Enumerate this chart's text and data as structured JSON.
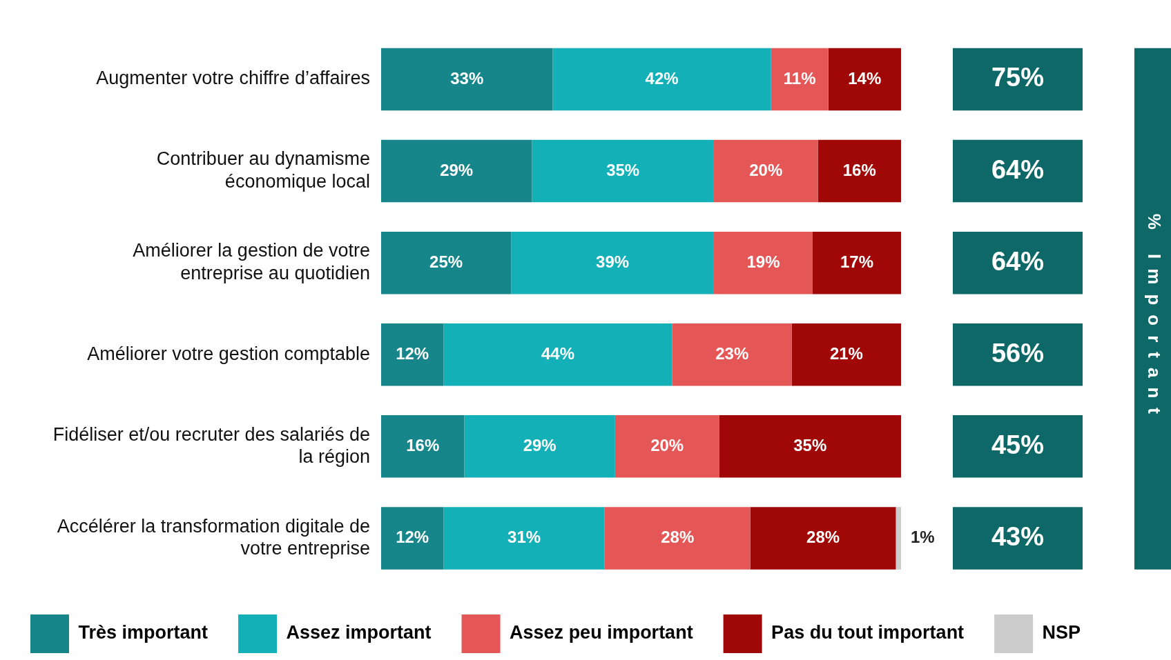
{
  "chart_data": {
    "type": "bar",
    "orientation": "horizontal",
    "stacked": true,
    "legend": "bottom",
    "grid": false,
    "tick_labels": "y",
    "categories": [
      "Augmenter votre chiffre d’affaires",
      "Contribuer au dynamisme économique local",
      "Améliorer la gestion de votre entreprise au quotidien",
      "Améliorer votre gestion comptable",
      "Fidéliser et/ou recruter des salariés de la région",
      "Accélérer la transformation digitale de votre entreprise"
    ],
    "series": [
      {
        "name": "Très important",
        "color": "#17868a",
        "values": [
          33,
          29,
          25,
          12,
          16,
          12
        ],
        "value_labels": [
          "33%",
          "29%",
          "25%",
          "12%",
          "16%",
          "12%"
        ]
      },
      {
        "name": "Assez important",
        "color": "#14b0b8",
        "values": [
          42,
          35,
          39,
          44,
          29,
          31
        ],
        "value_labels": [
          "42%",
          "35%",
          "39%",
          "44%",
          "29%",
          "31%"
        ]
      },
      {
        "name": "Assez peu important",
        "color": "#e55757",
        "values": [
          11,
          20,
          19,
          23,
          20,
          28
        ],
        "value_labels": [
          "11%",
          "20%",
          "19%",
          "23%",
          "20%",
          "28%"
        ]
      },
      {
        "name": "Pas du tout important",
        "color": "#a00808",
        "values": [
          14,
          16,
          17,
          21,
          35,
          28
        ],
        "value_labels": [
          "14%",
          "16%",
          "17%",
          "21%",
          "35%",
          "28%"
        ]
      },
      {
        "name": "NSP",
        "color": "#cccccc",
        "values": [
          null,
          null,
          null,
          null,
          null,
          1
        ],
        "value_labels": [
          null,
          null,
          null,
          null,
          null,
          "1%"
        ]
      }
    ],
    "annotations": [
      "% Important",
      "75%",
      "64%",
      "64%",
      "56%",
      "45%",
      "43%"
    ]
  }
}
